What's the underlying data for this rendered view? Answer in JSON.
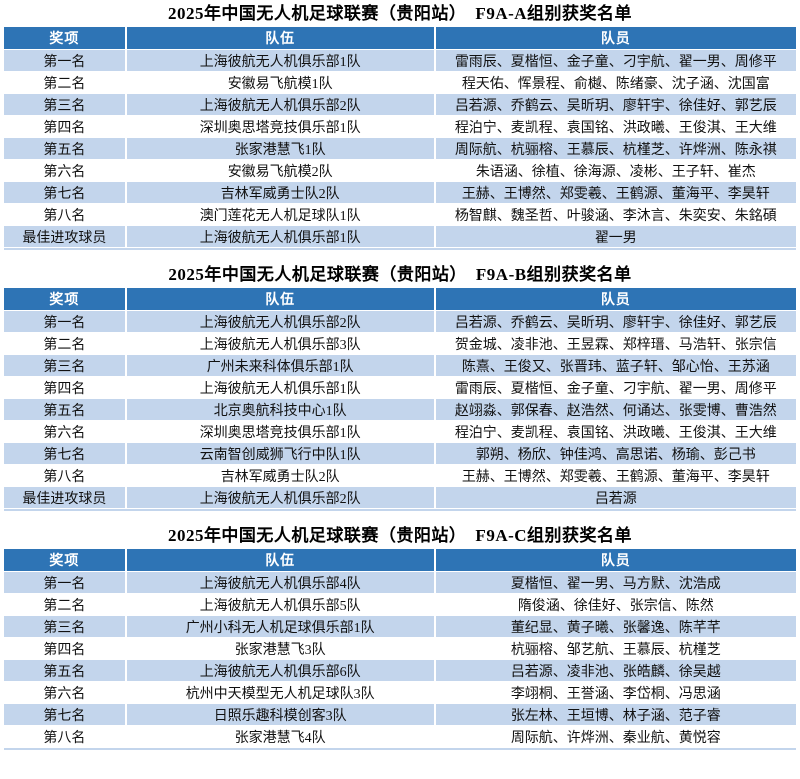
{
  "colors": {
    "header_bg": "#2e74b5",
    "header_text": "#ffffff",
    "stripe_bg": "#c3d5ec",
    "row_bg": "#ffffff",
    "body_text": "#111111"
  },
  "tables": [
    {
      "title": "2025年中国无人机足球联赛（贵阳站）　F9A-A组别获奖名单",
      "columns": [
        "奖项",
        "队伍",
        "队员"
      ],
      "rows": [
        [
          "第一名",
          "上海彼航无人机俱乐部1队",
          "雷雨辰、夏楷恒、金子童、刁宇航、翟一男、周修平"
        ],
        [
          "第二名",
          "安徽易飞航模1队",
          "程天佑、恽景程、俞樾、陈绪豪、沈子涵、沈国富"
        ],
        [
          "第三名",
          "上海彼航无人机俱乐部2队",
          "吕若源、乔鹤云、吴昕玥、廖轩宇、徐佳好、郭艺辰"
        ],
        [
          "第四名",
          "深圳奥思塔竞技俱乐部1队",
          "程泊宁、麦凯程、袁国铭、洪政曦、王俊淇、王大维"
        ],
        [
          "第五名",
          "张家港慧飞1队",
          "周际航、杭骊榕、王慕辰、杭槿芝、许烨洲、陈永祺"
        ],
        [
          "第六名",
          "安徽易飞航模2队",
          "朱语涵、徐植、徐海源、凌彬、王子轩、崔杰"
        ],
        [
          "第七名",
          "吉林军威勇士队2队",
          "王赫、王博然、郑雯羲、王鹤源、董海平、李昊轩"
        ],
        [
          "第八名",
          "澳门莲花无人机足球队1队",
          "杨智麒、魏圣哲、叶骏涵、李沐言、朱奕安、朱銘碩"
        ],
        [
          "最佳进攻球员",
          "上海彼航无人机俱乐部1队",
          "翟一男"
        ]
      ]
    },
    {
      "title": "2025年中国无人机足球联赛（贵阳站）　F9A-B组别获奖名单",
      "columns": [
        "奖项",
        "队伍",
        "队员"
      ],
      "rows": [
        [
          "第一名",
          "上海彼航无人机俱乐部2队",
          "吕若源、乔鹤云、吴昕玥、廖轩宇、徐佳好、郭艺辰"
        ],
        [
          "第二名",
          "上海彼航无人机俱乐部3队",
          "贺金城、凌非池、王昱霖、郑梓瑨、马浩轩、张宗信"
        ],
        [
          "第三名",
          "广州未来科体俱乐部1队",
          "陈熹、王俊又、张晋玮、蓝子轩、邹心怡、王苏涵"
        ],
        [
          "第四名",
          "上海彼航无人机俱乐部1队",
          "雷雨辰、夏楷恒、金子童、刁宇航、翟一男、周修平"
        ],
        [
          "第五名",
          "北京奥航科技中心1队",
          "赵翊淼、郭保春、赵浩然、何诵达、张雯博、曹浩然"
        ],
        [
          "第六名",
          "深圳奥思塔竞技俱乐部1队",
          "程泊宁、麦凯程、袁国铭、洪政曦、王俊淇、王大维"
        ],
        [
          "第七名",
          "云南智创威狮飞行中队1队",
          "郭朔、杨欣、钟佳鸿、高思诺、杨瑜、彭己书"
        ],
        [
          "第八名",
          "吉林军威勇士队2队",
          "王赫、王博然、郑雯羲、王鹤源、董海平、李昊轩"
        ],
        [
          "最佳进攻球员",
          "上海彼航无人机俱乐部2队",
          "吕若源"
        ]
      ]
    },
    {
      "title": "2025年中国无人机足球联赛（贵阳站）　F9A-C组别获奖名单",
      "columns": [
        "奖项",
        "队伍",
        "队员"
      ],
      "rows": [
        [
          "第一名",
          "上海彼航无人机俱乐部4队",
          "夏楷恒、翟一男、马方默、沈浩成"
        ],
        [
          "第二名",
          "上海彼航无人机俱乐部5队",
          "隋俊涵、徐佳好、张宗信、陈然"
        ],
        [
          "第三名",
          "广州小科无人机足球俱乐部1队",
          "董纪显、黄子曦、张馨逸、陈芊芊"
        ],
        [
          "第四名",
          "张家港慧飞3队",
          "杭骊榕、邹艺航、王慕辰、杭槿芝"
        ],
        [
          "第五名",
          "上海彼航无人机俱乐部6队",
          "吕若源、凌非池、张皓麟、徐吴越"
        ],
        [
          "第六名",
          "杭州中天模型无人机足球队3队",
          "李翊桐、王誉涵、李岱桐、冯思涵"
        ],
        [
          "第七名",
          "日照乐趣科模创客3队",
          "张左林、王垣博、林子涵、范子睿"
        ],
        [
          "第八名",
          "张家港慧飞4队",
          "周际航、许烨洲、秦业航、黄悦容"
        ]
      ]
    }
  ]
}
